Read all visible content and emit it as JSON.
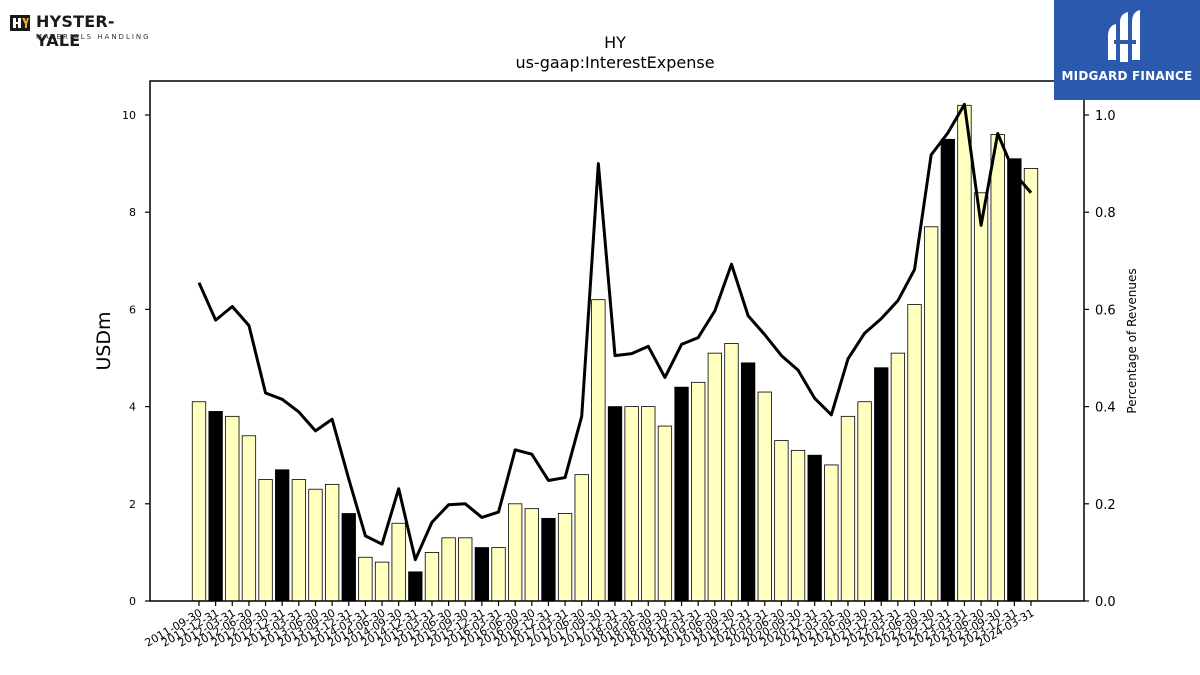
{
  "brand": {
    "left_logo_name": "HYSTER-YALE",
    "left_logo_sub": "MATERIALS HANDLING",
    "right_logo_text": "MIDGARD FINANCE",
    "right_logo_bg": "#2b59ad"
  },
  "chart_data": {
    "type": "bar",
    "title": "HY",
    "subtitle": "us-gaap:InterestExpense",
    "ylabel": "USDm",
    "y2label": "Percentage of Revenues",
    "ylim": [
      0,
      10.7
    ],
    "y2lim": [
      0,
      1.07
    ],
    "yticks": [
      "0",
      "2",
      "4",
      "6",
      "8",
      "10"
    ],
    "y2ticks": [
      "0.0",
      "0.2",
      "0.4",
      "0.6",
      "0.8",
      "1.0"
    ],
    "categories": [
      "2011-09-30",
      "2011-12-31",
      "2012-03-31",
      "2012-06-30",
      "2012-09-30",
      "2012-12-31",
      "2013-03-31",
      "2013-06-30",
      "2013-09-30",
      "2013-12-31",
      "2014-03-31",
      "2014-06-30",
      "2014-09-30",
      "2014-12-31",
      "2015-03-31",
      "2015-06-30",
      "2015-09-30",
      "2015-12-31",
      "2016-03-31",
      "2016-06-30",
      "2016-09-30",
      "2016-12-31",
      "2017-03-31",
      "2017-06-30",
      "2017-09-30",
      "2017-12-31",
      "2018-03-31",
      "2018-06-30",
      "2018-09-30",
      "2018-12-31",
      "2019-03-31",
      "2019-06-30",
      "2019-09-30",
      "2019-12-31",
      "2020-03-31",
      "2020-06-30",
      "2020-09-30",
      "2020-12-31",
      "2021-03-31",
      "2021-06-30",
      "2021-09-30",
      "2021-12-31",
      "2022-03-31",
      "2022-06-30",
      "2022-09-30",
      "2022-12-31",
      "2023-03-31",
      "2023-06-30",
      "2023-09-30",
      "2023-12-31",
      "2024-03-31"
    ],
    "series": [
      {
        "kind": "bar",
        "values": [
          4.1,
          3.9,
          3.8,
          3.4,
          2.5,
          2.7,
          2.5,
          2.3,
          2.4,
          1.8,
          0.9,
          0.8,
          1.6,
          0.6,
          1.0,
          1.3,
          1.3,
          1.1,
          1.1,
          2.0,
          1.9,
          1.7,
          1.8,
          2.6,
          6.2,
          4.0,
          4.0,
          4.0,
          3.6,
          4.4,
          4.5,
          5.1,
          5.3,
          4.9,
          4.3,
          3.3,
          3.1,
          3.0,
          2.8,
          3.8,
          4.1,
          4.8,
          5.1,
          6.1,
          7.7,
          9.5,
          10.2,
          8.4,
          9.6,
          9.1,
          8.9
        ],
        "highlight_year_end": true,
        "color_default": "#ffffc0",
        "color_year_end": "#000000"
      },
      {
        "kind": "line",
        "axis": "right",
        "color": "#000000",
        "values": [
          0.655,
          0.578,
          0.606,
          0.567,
          0.428,
          0.415,
          0.389,
          0.35,
          0.374,
          0.251,
          0.134,
          0.117,
          0.231,
          0.085,
          0.162,
          0.198,
          0.2,
          0.172,
          0.183,
          0.311,
          0.302,
          0.248,
          0.254,
          0.38,
          0.9,
          0.505,
          0.509,
          0.524,
          0.46,
          0.528,
          0.542,
          0.597,
          0.693,
          0.587,
          0.548,
          0.505,
          0.475,
          0.417,
          0.383,
          0.498,
          0.551,
          0.581,
          0.618,
          0.682,
          0.918,
          0.963,
          1.022,
          0.773,
          0.962,
          0.88,
          0.84
        ]
      }
    ]
  }
}
